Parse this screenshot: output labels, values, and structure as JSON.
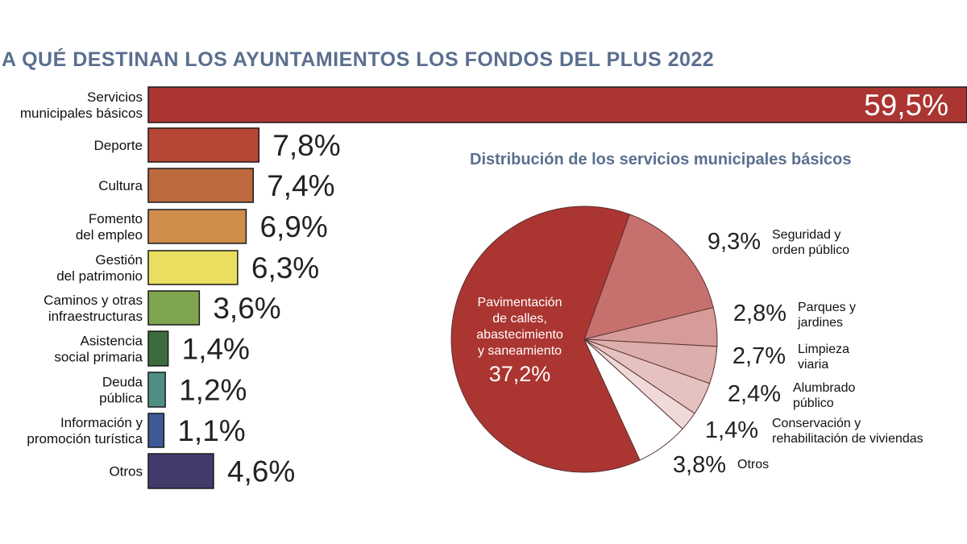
{
  "title": "A QUÉ DESTINAN LOS AYUNTAMIENTOS LOS FONDOS DEL PLUS 2022",
  "chart_data": [
    {
      "type": "bar",
      "orientation": "horizontal",
      "title": "A QUÉ DESTINAN LOS AYUNTAMIENTOS LOS FONDOS DEL PLUS 2022",
      "categories": [
        [
          "Servicios",
          "municipales básicos"
        ],
        [
          "Deporte"
        ],
        [
          "Cultura"
        ],
        [
          "Fomento",
          "del empleo"
        ],
        [
          "Gestión",
          "del patrimonio"
        ],
        [
          "Caminos y otras",
          "infraestructuras"
        ],
        [
          "Asistencia",
          "social primaria"
        ],
        [
          "Deuda",
          "pública"
        ],
        [
          "Información y",
          "promoción turística"
        ],
        [
          "Otros"
        ]
      ],
      "values": [
        59.5,
        7.8,
        7.4,
        6.9,
        6.3,
        3.6,
        1.4,
        1.2,
        1.1,
        4.6
      ],
      "value_labels": [
        "59,5%",
        "7,8%",
        "7,4%",
        "6,9%",
        "6,3%",
        "3,6%",
        "1,4%",
        "1,2%",
        "1,1%",
        "4,6%"
      ],
      "colors": [
        "#ab3531",
        "#b84636",
        "#bd6a3f",
        "#cf8c4b",
        "#e9de60",
        "#7ea54e",
        "#3c6b3e",
        "#4f8f83",
        "#3d5a96",
        "#423a6b"
      ],
      "xlabel": "",
      "ylabel": ""
    },
    {
      "type": "pie",
      "title": "Distribución de los servicios municipales básicos",
      "slices": [
        {
          "label": [
            "Pavimentación",
            "de calles,",
            "abastecimiento",
            "y saneamiento"
          ],
          "value": 37.2,
          "value_label": "37,2%",
          "color": "#ab3531"
        },
        {
          "label": [
            "Seguridad y",
            "orden público"
          ],
          "value": 9.3,
          "value_label": "9,3%",
          "color": "#c6716e"
        },
        {
          "label": [
            "Parques y",
            "jardines"
          ],
          "value": 2.8,
          "value_label": "2,8%",
          "color": "#d59c99"
        },
        {
          "label": [
            "Limpieza",
            "viaria"
          ],
          "value": 2.7,
          "value_label": "2,7%",
          "color": "#dcaeac"
        },
        {
          "label": [
            "Alumbrado",
            "público"
          ],
          "value": 2.4,
          "value_label": "2,4%",
          "color": "#e5c2c0"
        },
        {
          "label": [
            "Conservación y",
            "rehabilitación de viviendas"
          ],
          "value": 1.4,
          "value_label": "1,4%",
          "color": "#f0dad9"
        },
        {
          "label": [
            "Otros"
          ],
          "value": 3.8,
          "value_label": "3,8%",
          "color": "#ffffff"
        }
      ]
    }
  ]
}
